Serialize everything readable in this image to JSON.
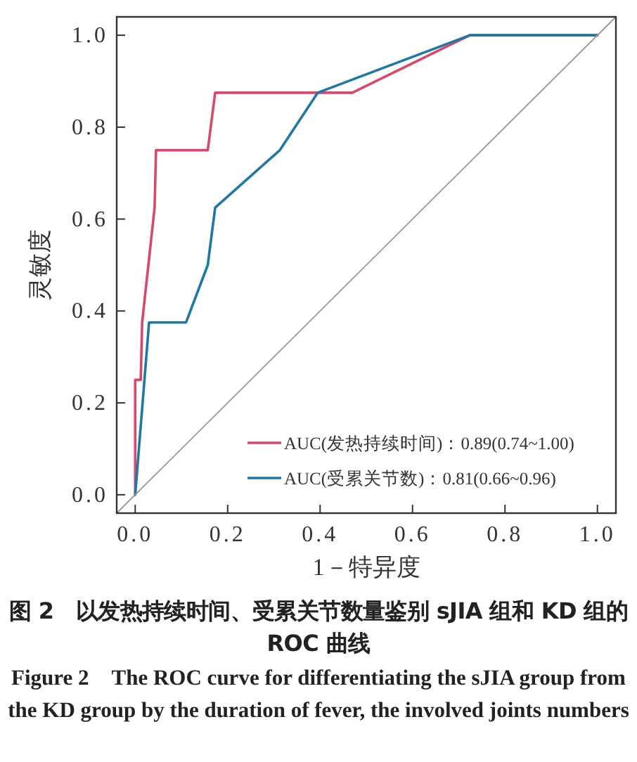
{
  "chart_data": {
    "type": "line",
    "xlabel": "1－特异度",
    "ylabel": "灵敏度",
    "xlim": [
      -0.04,
      1.04
    ],
    "ylim": [
      -0.04,
      1.04
    ],
    "xticks": [
      {
        "value": 0,
        "label": "0.0"
      },
      0.2,
      0.4,
      0.6,
      0.8,
      {
        "value": 1,
        "label": "1.0"
      }
    ],
    "yticks": [
      {
        "value": 0,
        "label": "0.0"
      },
      0.2,
      0.4,
      0.6,
      0.8,
      {
        "value": 1,
        "label": "1.0"
      }
    ],
    "legend": "bottom right",
    "series": [
      {
        "name": "AUC(发热持续时间)：0.89(0.74~1.00)",
        "color": "#d9476a",
        "x": [
          0,
          0,
          0.012,
          0.015,
          0.042,
          0.045,
          0.157,
          0.173,
          0.47,
          0.724,
          1.0
        ],
        "values": [
          0,
          0.25,
          0.25,
          0.375,
          0.625,
          0.75,
          0.75,
          0.875,
          0.875,
          1.0,
          1.0
        ]
      },
      {
        "name": "AUC(受累关节数)：0.81(0.66~0.96)",
        "color": "#1f78a4",
        "x": [
          0,
          0.03,
          0.11,
          0.157,
          0.173,
          0.313,
          0.395,
          0.724,
          1.0
        ],
        "values": [
          0,
          0.375,
          0.375,
          0.5,
          0.625,
          0.75,
          0.875,
          1.0,
          1.0
        ]
      },
      {
        "color": "#9a9a9a",
        "x": [
          -0.04,
          1.04
        ],
        "values": [
          -0.04,
          1.04
        ]
      }
    ],
    "annotations": [
      "图 2　以发热持续时间、受累关节数量鉴别 sJIA 组和 KD 组的 ROC 曲线",
      "Figure 2　The ROC curve for differentiating the sJIA group from the KD group by the duration of fever, the involved joints numbers"
    ]
  }
}
